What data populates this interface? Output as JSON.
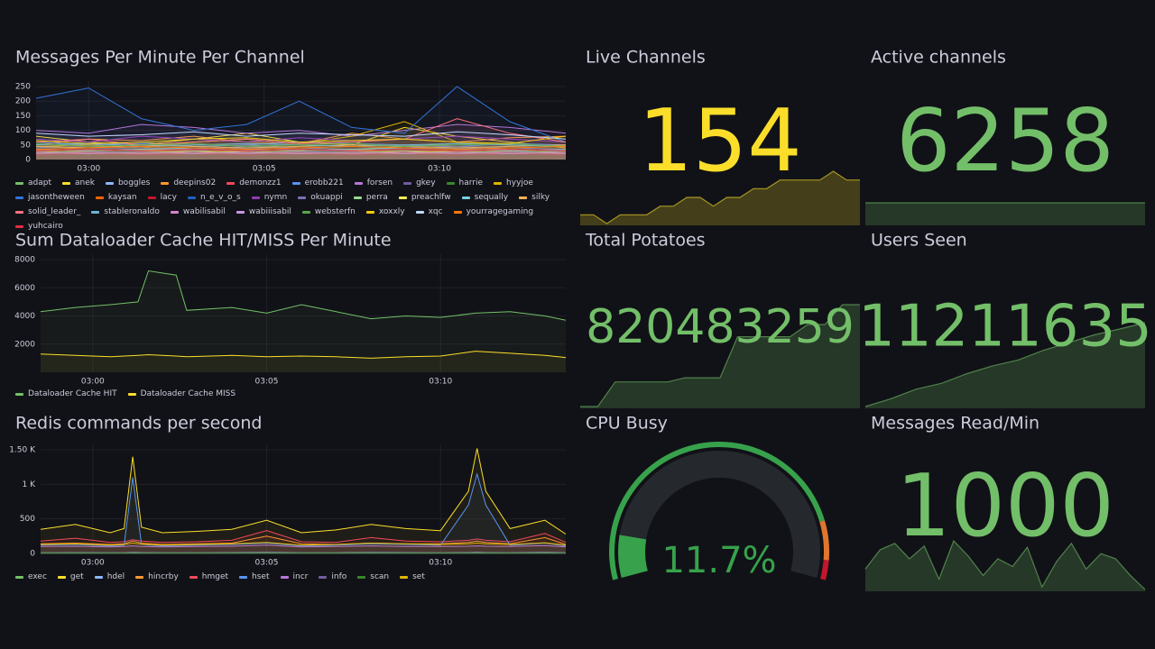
{
  "timeseries": [
    {
      "title": "Messages Per Minute Per Channel",
      "x": [
        -1.5,
        0,
        1.5,
        3,
        4.5,
        6,
        7.5,
        9,
        10.5,
        12,
        13.6
      ],
      "xlim": [
        -1.5,
        13.6
      ],
      "xticks": [
        {
          "value": 0,
          "label": "03:00"
        },
        {
          "value": 5,
          "label": "03:05"
        },
        {
          "value": 10,
          "label": "03:10"
        }
      ],
      "ylim": [
        0,
        250
      ],
      "yticks": [
        0,
        50,
        100,
        150,
        200,
        250
      ],
      "series": [
        {
          "name": "adapt",
          "color": "#73bf69",
          "values": [
            40,
            55,
            60,
            45,
            50,
            40,
            35,
            45,
            55,
            50,
            45
          ]
        },
        {
          "name": "anek",
          "color": "#fade2a",
          "values": [
            80,
            60,
            50,
            70,
            90,
            60,
            50,
            110,
            80,
            60,
            40
          ]
        },
        {
          "name": "boggles",
          "color": "#8ab8ff",
          "values": [
            30,
            35,
            30,
            40,
            35,
            30,
            30,
            35,
            40,
            35,
            30
          ]
        },
        {
          "name": "deepins02",
          "color": "#ff9830",
          "values": [
            50,
            70,
            65,
            80,
            60,
            55,
            90,
            70,
            60,
            75,
            80
          ]
        },
        {
          "name": "demonzz1",
          "color": "#f2495c",
          "values": [
            20,
            25,
            20,
            30,
            25,
            20,
            25,
            20,
            30,
            25,
            20
          ]
        },
        {
          "name": "erobb221",
          "color": "#5794f2",
          "values": [
            60,
            50,
            55,
            45,
            50,
            60,
            55,
            50,
            45,
            55,
            50
          ]
        },
        {
          "name": "forsen",
          "color": "#b877d9",
          "values": [
            100,
            90,
            120,
            110,
            90,
            100,
            80,
            100,
            120,
            110,
            90
          ]
        },
        {
          "name": "gkey",
          "color": "#705da0",
          "values": [
            35,
            40,
            35,
            30,
            40,
            35,
            30,
            35,
            40,
            30,
            35
          ]
        },
        {
          "name": "harrie",
          "color": "#37872d",
          "values": [
            25,
            30,
            25,
            20,
            25,
            30,
            25,
            20,
            25,
            30,
            25
          ]
        },
        {
          "name": "hyyjoe",
          "color": "#e0b400",
          "values": [
            45,
            50,
            40,
            60,
            70,
            55,
            80,
            130,
            60,
            50,
            45
          ]
        },
        {
          "name": "jasontheween",
          "color": "#3274d9",
          "values": [
            210,
            245,
            140,
            100,
            120,
            200,
            110,
            90,
            250,
            130,
            60
          ]
        },
        {
          "name": "kaysan",
          "color": "#fa6400",
          "values": [
            30,
            25,
            35,
            30,
            25,
            30,
            35,
            30,
            25,
            30,
            35
          ]
        },
        {
          "name": "lacy",
          "color": "#c4162a",
          "values": [
            15,
            20,
            15,
            20,
            15,
            20,
            15,
            20,
            15,
            20,
            15
          ]
        },
        {
          "name": "n_e_v_o_s",
          "color": "#1f60c4",
          "values": [
            20,
            25,
            30,
            25,
            20,
            25,
            30,
            25,
            20,
            25,
            30
          ]
        },
        {
          "name": "nymn",
          "color": "#8f3bb8",
          "values": [
            70,
            60,
            80,
            70,
            60,
            75,
            65,
            70,
            80,
            70,
            60
          ]
        },
        {
          "name": "okuappi",
          "color": "#806eb7",
          "values": [
            40,
            45,
            40,
            35,
            45,
            40,
            35,
            40,
            45,
            40,
            35
          ]
        },
        {
          "name": "perra",
          "color": "#96d98d",
          "values": [
            25,
            30,
            35,
            30,
            25,
            30,
            35,
            30,
            25,
            30,
            25
          ]
        },
        {
          "name": "preachlfw",
          "color": "#ffee52",
          "values": [
            30,
            35,
            30,
            25,
            30,
            35,
            30,
            25,
            30,
            35,
            30
          ]
        },
        {
          "name": "sequally",
          "color": "#73d0e0",
          "values": [
            35,
            30,
            35,
            40,
            35,
            30,
            35,
            40,
            35,
            30,
            35
          ]
        },
        {
          "name": "silky",
          "color": "#ffb357",
          "values": [
            45,
            40,
            50,
            45,
            40,
            45,
            50,
            45,
            40,
            45,
            50
          ]
        },
        {
          "name": "solid_leader_",
          "color": "#ff7383",
          "values": [
            60,
            70,
            50,
            60,
            70,
            55,
            60,
            70,
            140,
            90,
            60
          ]
        },
        {
          "name": "stableronaldo",
          "color": "#6ab4d8",
          "values": [
            50,
            55,
            45,
            50,
            55,
            50,
            45,
            50,
            55,
            50,
            45
          ]
        },
        {
          "name": "wabilisabil",
          "color": "#d683ce",
          "values": [
            20,
            25,
            20,
            25,
            20,
            25,
            20,
            25,
            20,
            25,
            20
          ]
        },
        {
          "name": "wabiiisabil",
          "color": "#ca95e5",
          "values": [
            25,
            20,
            25,
            20,
            25,
            20,
            25,
            20,
            25,
            20,
            25
          ]
        },
        {
          "name": "websterfn",
          "color": "#56a64b",
          "values": [
            55,
            45,
            50,
            55,
            45,
            50,
            55,
            45,
            50,
            55,
            45
          ]
        },
        {
          "name": "xoxxly",
          "color": "#f2cc0c",
          "values": [
            65,
            55,
            60,
            70,
            75,
            60,
            65,
            70,
            60,
            55,
            80
          ]
        },
        {
          "name": "xqc",
          "color": "#c0d8ff",
          "values": [
            90,
            80,
            85,
            95,
            80,
            90,
            85,
            80,
            95,
            85,
            70
          ]
        },
        {
          "name": "yourragegaming",
          "color": "#ff780a",
          "values": [
            35,
            40,
            45,
            40,
            35,
            40,
            45,
            40,
            35,
            40,
            45
          ]
        },
        {
          "name": "yuhcairo",
          "color": "#e02f44",
          "values": [
            30,
            35,
            30,
            35,
            30,
            35,
            30,
            35,
            30,
            35,
            30
          ]
        }
      ]
    },
    {
      "title": "Sum Dataloader Cache HIT/MISS Per Minute",
      "x": [
        -1.5,
        -0.5,
        0.5,
        1.3,
        1.6,
        2.4,
        2.7,
        4,
        5,
        6,
        7,
        8,
        9,
        10,
        11,
        12,
        13,
        13.6
      ],
      "xlim": [
        -1.5,
        13.6
      ],
      "xticks": [
        {
          "value": 0,
          "label": "03:00"
        },
        {
          "value": 5,
          "label": "03:05"
        },
        {
          "value": 10,
          "label": "03:10"
        }
      ],
      "ylim": [
        0,
        8000
      ],
      "yticks": [
        2000,
        4000,
        6000,
        8000
      ],
      "series": [
        {
          "name": "Dataloader Cache HIT",
          "color": "#73bf69",
          "values": [
            4300,
            4600,
            4800,
            5000,
            7200,
            6900,
            4400,
            4600,
            4200,
            4800,
            4300,
            3800,
            4000,
            3900,
            4200,
            4300,
            4000,
            3700
          ]
        },
        {
          "name": "Dataloader Cache MISS",
          "color": "#fade2a",
          "values": [
            1300,
            1200,
            1100,
            1200,
            1250,
            1150,
            1100,
            1200,
            1100,
            1150,
            1100,
            1000,
            1100,
            1150,
            1500,
            1350,
            1200,
            1050
          ]
        }
      ]
    },
    {
      "title": "Redis commands per second",
      "x": [
        -1.5,
        -0.5,
        0.5,
        0.9,
        1.15,
        1.4,
        2,
        3,
        4,
        5,
        6,
        7,
        8,
        9,
        10,
        10.8,
        11.05,
        11.3,
        12,
        13,
        13.6
      ],
      "xlim": [
        -1.5,
        13.6
      ],
      "xticks": [
        {
          "value": 0,
          "label": "03:00"
        },
        {
          "value": 5,
          "label": "03:05"
        },
        {
          "value": 10,
          "label": "03:10"
        }
      ],
      "ylim": [
        0,
        1500
      ],
      "yticks": [
        0,
        500,
        {
          "value": 1000,
          "label": "1 K"
        },
        {
          "value": 1500,
          "label": "1.50 K"
        }
      ],
      "series": [
        {
          "name": "exec",
          "color": "#73bf69",
          "values": [
            5,
            5,
            5,
            5,
            5,
            5,
            5,
            5,
            5,
            5,
            5,
            5,
            5,
            5,
            5,
            5,
            5,
            5,
            5,
            5,
            5
          ]
        },
        {
          "name": "get",
          "color": "#fade2a",
          "values": [
            350,
            420,
            300,
            360,
            1400,
            380,
            300,
            320,
            350,
            480,
            300,
            340,
            420,
            360,
            330,
            900,
            1520,
            900,
            360,
            480,
            280
          ]
        },
        {
          "name": "hdel",
          "color": "#8ab8ff",
          "values": [
            10,
            12,
            10,
            11,
            14,
            12,
            10,
            11,
            12,
            15,
            10,
            11,
            13,
            12,
            11,
            12,
            14,
            12,
            11,
            14,
            10
          ]
        },
        {
          "name": "hincrby",
          "color": "#ff9830",
          "values": [
            140,
            150,
            130,
            140,
            180,
            150,
            130,
            140,
            150,
            250,
            140,
            130,
            150,
            140,
            140,
            160,
            180,
            160,
            140,
            230,
            130
          ]
        },
        {
          "name": "hmget",
          "color": "#f2495c",
          "values": [
            180,
            220,
            160,
            170,
            200,
            180,
            160,
            170,
            190,
            330,
            170,
            160,
            230,
            180,
            170,
            190,
            210,
            190,
            170,
            290,
            160
          ]
        },
        {
          "name": "hset",
          "color": "#5794f2",
          "values": [
            120,
            130,
            110,
            120,
            1100,
            130,
            110,
            120,
            130,
            150,
            110,
            120,
            140,
            130,
            120,
            700,
            1150,
            700,
            120,
            150,
            110
          ]
        },
        {
          "name": "incr",
          "color": "#b877d9",
          "values": [
            100,
            105,
            95,
            100,
            110,
            100,
            95,
            100,
            105,
            120,
            95,
            100,
            110,
            100,
            100,
            105,
            110,
            105,
            100,
            115,
            95
          ]
        },
        {
          "name": "info",
          "color": "#705da0",
          "values": [
            3,
            3,
            3,
            3,
            3,
            3,
            3,
            3,
            3,
            3,
            3,
            3,
            3,
            3,
            3,
            3,
            3,
            3,
            3,
            3,
            3
          ]
        },
        {
          "name": "scan",
          "color": "#37872d",
          "values": [
            2,
            2,
            2,
            2,
            2,
            2,
            2,
            2,
            2,
            2,
            2,
            2,
            2,
            2,
            2,
            2,
            2,
            2,
            2,
            2,
            2
          ]
        },
        {
          "name": "set",
          "color": "#e0b400",
          "values": [
            130,
            140,
            120,
            130,
            150,
            135,
            120,
            130,
            140,
            160,
            120,
            130,
            150,
            140,
            130,
            140,
            150,
            140,
            130,
            155,
            120
          ]
        }
      ]
    }
  ],
  "stats": [
    {
      "title": "Live Channels",
      "value": 154,
      "color": "#fade2a",
      "spark": [
        150,
        150,
        149,
        150,
        150,
        150,
        151,
        151,
        152,
        152,
        151,
        152,
        152,
        153,
        153,
        154,
        154,
        154,
        154,
        155,
        154,
        154
      ]
    },
    {
      "title": "Active channels",
      "value": 6258,
      "color": "#73bf69",
      "spark": [
        6258,
        6258,
        6258,
        6258,
        6258,
        6258,
        6258,
        6258,
        6258,
        6258
      ]
    },
    {
      "title": "Total Potatoes",
      "value": 820483259,
      "color": "#73bf69",
      "spark": [
        818000000,
        818000000,
        818600000,
        818600000,
        818600000,
        818600000,
        818700000,
        818700000,
        818700000,
        819700000,
        819700000,
        819700000,
        819700000,
        820000000,
        820000000,
        820483259,
        820483259
      ]
    },
    {
      "title": "Users Seen",
      "value": 11211635,
      "color": "#73bf69",
      "spark": [
        11190000,
        11192000,
        11194500,
        11196000,
        11198500,
        11200500,
        11202000,
        11204500,
        11206500,
        11208500,
        11210000,
        11211635
      ]
    },
    {
      "title": "Messages Read/Min",
      "value": 1000,
      "color": "#73bf69",
      "spark": [
        700,
        850,
        900,
        780,
        880,
        620,
        920,
        800,
        650,
        780,
        720,
        870,
        560,
        760,
        900,
        700,
        820,
        780,
        650,
        540
      ]
    }
  ],
  "gauge": {
    "title": "CPU Busy",
    "value": 11.7,
    "value_label": "11.7%",
    "range": [
      0,
      100
    ],
    "color": "#37a24b",
    "thresholds": [
      {
        "value": 0,
        "color": "#37a24b"
      },
      {
        "value": 85,
        "color": "#e0752d"
      },
      {
        "value": 95,
        "color": "#c4162a"
      }
    ]
  }
}
